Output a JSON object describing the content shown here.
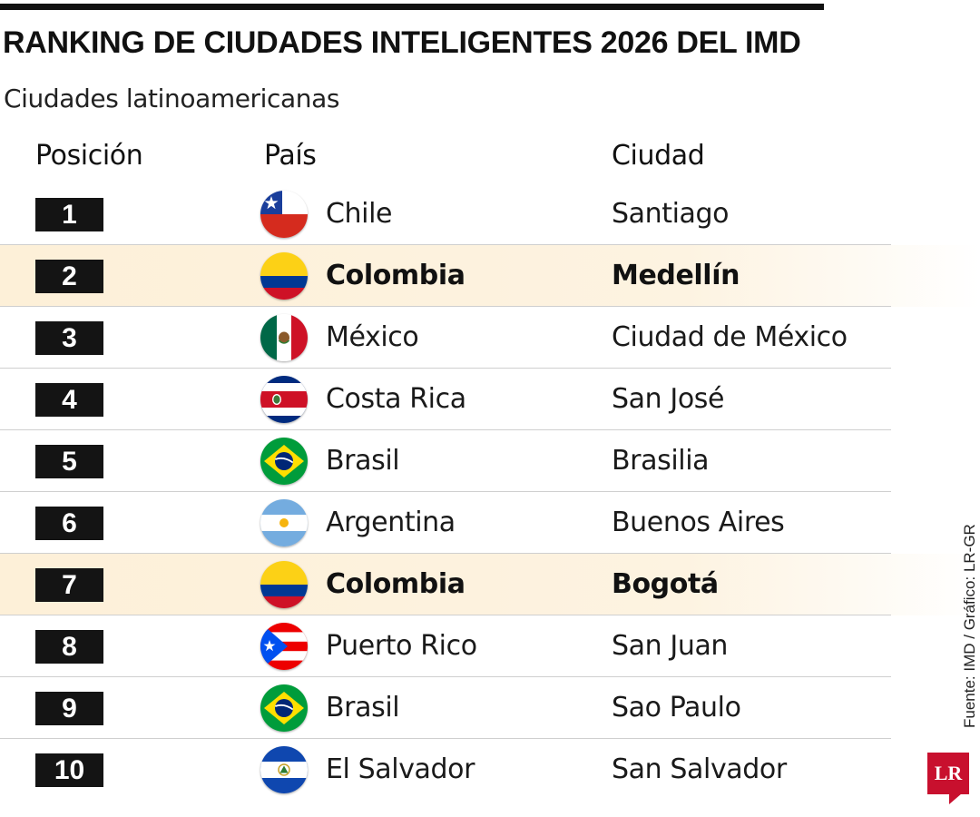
{
  "title": "RANKING DE CIUDADES INTELIGENTES 2026 DEL IMD",
  "subtitle": "Ciudades latinoamericanas",
  "headers": {
    "position": "Posición",
    "country": "País",
    "city": "Ciudad"
  },
  "source": "Fuente: IMD / Gráfico: LR-GR",
  "logo": "LR",
  "colors": {
    "highlight_row": "#fdf0d8",
    "position_box": "#141414",
    "logo": "#c8102e",
    "top_bar": "#111111"
  },
  "rows": [
    {
      "position": "1",
      "country": "Chile",
      "city": "Santiago",
      "flag": "flag-chile",
      "highlighted": false
    },
    {
      "position": "2",
      "country": "Colombia",
      "city": "Medellín",
      "flag": "flag-colombia",
      "highlighted": true
    },
    {
      "position": "3",
      "country": "México",
      "city": "Ciudad de México",
      "flag": "flag-mexico",
      "highlighted": false
    },
    {
      "position": "4",
      "country": "Costa Rica",
      "city": "San José",
      "flag": "flag-costa-rica",
      "highlighted": false
    },
    {
      "position": "5",
      "country": "Brasil",
      "city": "Brasilia",
      "flag": "flag-brazil",
      "highlighted": false
    },
    {
      "position": "6",
      "country": "Argentina",
      "city": "Buenos Aires",
      "flag": "flag-argentina",
      "highlighted": false
    },
    {
      "position": "7",
      "country": "Colombia",
      "city": "Bogotá",
      "flag": "flag-colombia",
      "highlighted": true
    },
    {
      "position": "8",
      "country": "Puerto Rico",
      "city": "San Juan",
      "flag": "flag-puerto-rico",
      "highlighted": false
    },
    {
      "position": "9",
      "country": "Brasil",
      "city": "Sao Paulo",
      "flag": "flag-brazil",
      "highlighted": false
    },
    {
      "position": "10",
      "country": "El Salvador",
      "city": "San Salvador",
      "flag": "flag-el-salvador",
      "highlighted": false
    }
  ]
}
